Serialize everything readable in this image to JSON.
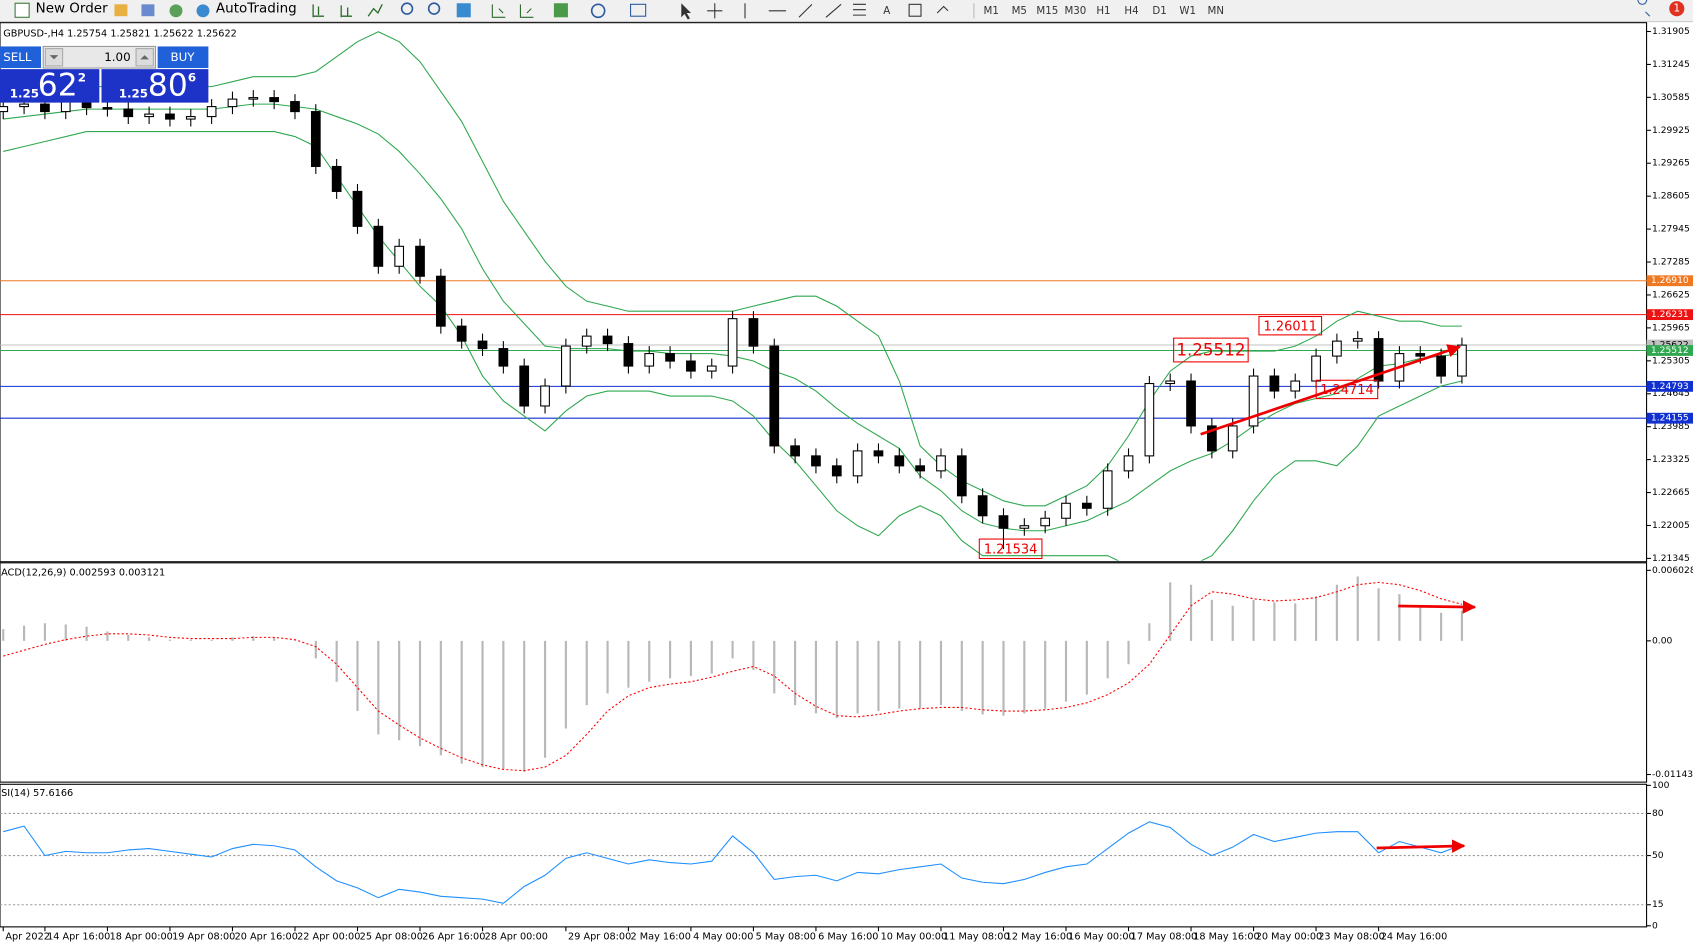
{
  "toolbar": {
    "new_order": "New Order",
    "autotrading": "AutoTrading",
    "timeframes": [
      "M1",
      "M5",
      "M15",
      "M30",
      "H1",
      "H4",
      "D1",
      "W1",
      "MN"
    ],
    "alerts": "1"
  },
  "trade_panel": {
    "sell": "SELL",
    "lots": "1.00",
    "buy": "BUY",
    "sell_big": "1.25",
    "sell_digits": "62",
    "sell_pip": "2",
    "buy_big": "1.25",
    "buy_digits": "80",
    "buy_pip": "6"
  },
  "chart_data": [
    {
      "type": "candlestick",
      "title": "GBPUSD-,H4 1.25754 1.25821 1.25622 1.25622",
      "categories": [
        "Apr 2022",
        null,
        "14 Apr 16:00",
        null,
        null,
        "18 Apr 00:00",
        null,
        null,
        "19 Apr 08:00",
        null,
        null,
        "20 Apr 16:00",
        null,
        null,
        "22 Apr 00:00",
        null,
        null,
        "25 Apr 08:00",
        null,
        null,
        "26 Apr 16:00",
        null,
        null,
        "28 Apr 00:00",
        null,
        null,
        null,
        "29 Apr 08:00",
        null,
        null,
        "2 May 16:00",
        null,
        null,
        "4 May 00:00",
        null,
        null,
        "5 May 08:00",
        null,
        null,
        "6 May 16:00",
        null,
        null,
        "10 May 00:00",
        null,
        null,
        "11 May 08:00",
        null,
        null,
        "12 May 16:00",
        null,
        null,
        "16 May 00:00",
        null,
        null,
        "17 May 08:00",
        null,
        null,
        "18 May 16:00",
        null,
        null,
        "20 May 00:00",
        null,
        null,
        "23 May 08:00",
        null,
        null,
        "24 May 16:00",
        null,
        null,
        null,
        null
      ],
      "open": [
        1.303,
        1.304,
        1.3045,
        1.303,
        1.305,
        1.3038,
        1.3035,
        1.302,
        1.3025,
        1.3015,
        1.302,
        1.304,
        1.3055,
        1.3058,
        1.305,
        1.303,
        1.292,
        1.287,
        1.28,
        1.272,
        1.276,
        1.27,
        1.26,
        1.257,
        1.2555,
        1.252,
        1.244,
        1.248,
        1.256,
        1.258,
        1.2565,
        1.252,
        1.2545,
        1.253,
        1.251,
        1.252,
        1.2615,
        1.256,
        1.236,
        1.234,
        1.232,
        1.23,
        1.235,
        1.234,
        1.232,
        1.231,
        1.234,
        1.226,
        1.222,
        1.2195,
        1.22,
        1.2215,
        1.2245,
        1.2235,
        1.231,
        1.234,
        1.2485,
        1.249,
        1.24,
        1.235,
        1.24,
        1.25,
        1.247,
        1.249,
        1.254,
        1.257,
        1.2575,
        1.249,
        1.2545,
        1.254,
        1.25
      ],
      "high": [
        1.3055,
        1.306,
        1.306,
        1.3065,
        1.3065,
        1.3053,
        1.305,
        1.304,
        1.304,
        1.3035,
        1.3055,
        1.307,
        1.3073,
        1.3073,
        1.3065,
        1.3045,
        1.2935,
        1.2885,
        1.2815,
        1.2775,
        1.2775,
        1.2715,
        1.2615,
        1.2585,
        1.257,
        1.2535,
        1.2495,
        1.2575,
        1.2595,
        1.2595,
        1.258,
        1.256,
        1.256,
        1.2545,
        1.2535,
        1.263,
        1.263,
        1.2575,
        1.2375,
        1.2355,
        1.2335,
        1.2365,
        1.2365,
        1.2355,
        1.2335,
        1.2355,
        1.2355,
        1.2275,
        1.2235,
        1.2215,
        1.223,
        1.226,
        1.226,
        1.2325,
        1.2355,
        1.25,
        1.2505,
        1.2505,
        1.2415,
        1.2415,
        1.2515,
        1.2515,
        1.2505,
        1.2555,
        1.2585,
        1.259,
        1.259,
        1.256,
        1.256,
        1.2555,
        1.2577
      ],
      "low": [
        1.3015,
        1.3025,
        1.3015,
        1.3015,
        1.3023,
        1.302,
        1.3005,
        1.3005,
        1.3,
        1.3,
        1.3005,
        1.3025,
        1.304,
        1.3035,
        1.3015,
        1.2905,
        1.2855,
        1.2785,
        1.2705,
        1.2705,
        1.2685,
        1.2585,
        1.2555,
        1.254,
        1.2505,
        1.2425,
        1.2425,
        1.2465,
        1.2545,
        1.255,
        1.2505,
        1.2505,
        1.2515,
        1.2495,
        1.2495,
        1.2505,
        1.2545,
        1.2345,
        1.2325,
        1.2305,
        1.2285,
        1.2285,
        1.2325,
        1.2305,
        1.2295,
        1.2295,
        1.2245,
        1.2205,
        1.2153,
        1.218,
        1.2185,
        1.22,
        1.222,
        1.222,
        1.2295,
        1.2325,
        1.247,
        1.2385,
        1.2335,
        1.2335,
        1.2385,
        1.2455,
        1.2455,
        1.2475,
        1.2525,
        1.2555,
        1.2475,
        1.2475,
        1.2525,
        1.2485,
        1.2485
      ],
      "close": [
        1.304,
        1.3045,
        1.303,
        1.305,
        1.3038,
        1.3035,
        1.302,
        1.3025,
        1.3015,
        1.302,
        1.304,
        1.3055,
        1.3058,
        1.305,
        1.303,
        1.292,
        1.287,
        1.28,
        1.272,
        1.276,
        1.27,
        1.26,
        1.257,
        1.2555,
        1.252,
        1.244,
        1.248,
        1.256,
        1.258,
        1.2565,
        1.252,
        1.2545,
        1.253,
        1.251,
        1.252,
        1.2615,
        1.256,
        1.236,
        1.234,
        1.232,
        1.23,
        1.235,
        1.234,
        1.232,
        1.231,
        1.234,
        1.226,
        1.222,
        1.2195,
        1.22,
        1.2215,
        1.2245,
        1.2235,
        1.231,
        1.234,
        1.2485,
        1.249,
        1.24,
        1.235,
        1.24,
        1.25,
        1.247,
        1.249,
        1.254,
        1.257,
        1.2575,
        1.249,
        1.2545,
        1.254,
        1.25,
        1.2562
      ],
      "up_color": "#ffffff",
      "down_color": "#000000",
      "bands": {
        "color": "#2fa84f",
        "upper": [
          1.308,
          1.308,
          1.308,
          1.308,
          1.308,
          1.308,
          1.308,
          1.308,
          1.308,
          1.308,
          1.308,
          1.309,
          1.31,
          1.31,
          1.31,
          1.311,
          1.314,
          1.317,
          1.319,
          1.317,
          1.313,
          1.307,
          1.301,
          1.293,
          1.285,
          1.279,
          1.273,
          1.268,
          1.265,
          1.264,
          1.263,
          1.263,
          1.263,
          1.263,
          1.263,
          1.263,
          1.264,
          1.265,
          1.266,
          1.266,
          1.264,
          1.261,
          1.258,
          1.249,
          1.236,
          1.232,
          1.229,
          1.227,
          1.225,
          1.224,
          1.224,
          1.226,
          1.228,
          1.232,
          1.238,
          1.245,
          1.251,
          1.254,
          1.255,
          1.255,
          1.255,
          1.255,
          1.256,
          1.258,
          1.261,
          1.263,
          1.262,
          1.261,
          1.261,
          1.26,
          1.26
        ],
        "middle": [
          1.3015,
          1.302,
          1.3025,
          1.303,
          1.3035,
          1.3035,
          1.3035,
          1.3035,
          1.3035,
          1.3035,
          1.3035,
          1.304,
          1.3045,
          1.3045,
          1.304,
          1.3035,
          1.302,
          1.3005,
          1.2985,
          1.295,
          1.2905,
          1.2855,
          1.2795,
          1.2715,
          1.265,
          1.2605,
          1.256,
          1.2555,
          1.2555,
          1.2555,
          1.255,
          1.255,
          1.2545,
          1.2545,
          1.2545,
          1.254,
          1.253,
          1.251,
          1.2495,
          1.247,
          1.2435,
          1.2405,
          1.238,
          1.2355,
          1.23,
          1.227,
          1.223,
          1.2205,
          1.2195,
          1.219,
          1.219,
          1.22,
          1.221,
          1.223,
          1.225,
          1.228,
          1.231,
          1.233,
          1.2345,
          1.237,
          1.24,
          1.2425,
          1.2445,
          1.2455,
          1.2465,
          1.2495,
          1.252,
          1.2525,
          1.2535,
          1.254,
          1.2545
        ],
        "lower": [
          1.295,
          1.296,
          1.297,
          1.298,
          1.299,
          1.299,
          1.299,
          1.299,
          1.299,
          1.299,
          1.299,
          1.299,
          1.299,
          1.299,
          1.298,
          1.296,
          1.29,
          1.284,
          1.278,
          1.273,
          1.268,
          1.264,
          1.258,
          1.25,
          1.245,
          1.242,
          1.239,
          1.243,
          1.246,
          1.247,
          1.247,
          1.247,
          1.246,
          1.246,
          1.246,
          1.245,
          1.242,
          1.237,
          1.233,
          1.228,
          1.223,
          1.22,
          1.218,
          1.222,
          1.224,
          1.222,
          1.217,
          1.214,
          1.214,
          1.214,
          1.214,
          1.214,
          1.214,
          1.214,
          1.212,
          1.211,
          1.211,
          1.212,
          1.214,
          1.219,
          1.225,
          1.23,
          1.233,
          1.233,
          1.232,
          1.236,
          1.242,
          1.244,
          1.246,
          1.248,
          1.249
        ]
      },
      "ylim": [
        1.213,
        1.3206
      ],
      "yticks": [
        1.31905,
        1.31245,
        1.30585,
        1.29925,
        1.29265,
        1.28605,
        1.27945,
        1.27285,
        1.26625,
        1.25965,
        1.25305,
        1.24645,
        1.23985,
        1.23325,
        1.22665,
        1.22005,
        1.21345
      ],
      "levels": [
        {
          "value": 1.2691,
          "label": "1.26910",
          "color": "#f07820",
          "text_color": "#ffffff"
        },
        {
          "value": 1.26231,
          "label": "1.26231",
          "color": "#ee1111",
          "text_color": "#ffffff"
        },
        {
          "value": 1.25622,
          "label": "1.25622",
          "color": "#c0c0c0",
          "text_color": "#000000"
        },
        {
          "value": 1.25512,
          "label": "1.25512",
          "color": "#2fa84f",
          "text_color": "#ffffff"
        },
        {
          "value": 1.24793,
          "label": "1.24793",
          "color": "#1030d0",
          "text_color": "#ffffff"
        },
        {
          "value": 1.24155,
          "label": "1.24155",
          "color": "#1030d0",
          "text_color": "#ffffff"
        }
      ],
      "annotations": [
        "1.26011",
        "1.25512",
        "1.24714",
        "1.21534"
      ]
    },
    {
      "type": "macd",
      "title": "ACD(12,26,9) 0.002593 0.003121",
      "histogram": {
        "color": "#b8b8b8",
        "values": [
          0.001,
          0.0013,
          0.0015,
          0.0014,
          0.0012,
          0.0008,
          0.0005,
          0.0003,
          0.0001,
          0.0001,
          0.0001,
          0.0003,
          0.0004,
          0.0003,
          0.0001,
          -0.0015,
          -0.0035,
          -0.006,
          -0.008,
          -0.0085,
          -0.009,
          -0.0098,
          -0.0105,
          -0.0108,
          -0.011,
          -0.0112,
          -0.01,
          -0.0075,
          -0.0055,
          -0.0045,
          -0.004,
          -0.0035,
          -0.0032,
          -0.003,
          -0.0028,
          -0.0015,
          -0.0025,
          -0.0045,
          -0.0055,
          -0.0062,
          -0.0066,
          -0.0062,
          -0.006,
          -0.0058,
          -0.0058,
          -0.0055,
          -0.006,
          -0.0063,
          -0.0064,
          -0.0062,
          -0.0058,
          -0.0052,
          -0.0046,
          -0.0032,
          -0.002,
          0.0015,
          0.005,
          0.0048,
          0.0035,
          0.003,
          0.0035,
          0.0033,
          0.0032,
          0.0038,
          0.0048,
          0.0055,
          0.0045,
          0.004,
          0.003,
          0.0024,
          0.002593
        ]
      },
      "signal": {
        "color": "#ff0000",
        "values": [
          -0.0013,
          -0.0008,
          -0.0003,
          0.0001,
          0.0004,
          0.0006,
          0.0006,
          0.0005,
          0.0003,
          0.0002,
          0.0002,
          0.0002,
          0.0003,
          0.0003,
          0.0001,
          -0.0005,
          -0.002,
          -0.004,
          -0.006,
          -0.0072,
          -0.0083,
          -0.0092,
          -0.01,
          -0.0106,
          -0.011,
          -0.0111,
          -0.0108,
          -0.0098,
          -0.008,
          -0.006,
          -0.0047,
          -0.004,
          -0.0037,
          -0.0035,
          -0.0031,
          -0.0026,
          -0.0022,
          -0.003,
          -0.0045,
          -0.0056,
          -0.0064,
          -0.0065,
          -0.0063,
          -0.006,
          -0.0058,
          -0.0057,
          -0.0057,
          -0.0059,
          -0.006,
          -0.006,
          -0.0059,
          -0.0057,
          -0.0053,
          -0.0046,
          -0.0036,
          -0.002,
          0.0005,
          0.003,
          0.0042,
          0.004,
          0.0036,
          0.0034,
          0.0035,
          0.0037,
          0.0042,
          0.0048,
          0.005,
          0.0048,
          0.0043,
          0.0036,
          0.003121
        ]
      },
      "ylim": [
        -0.01199,
        0.00658
      ],
      "yticks": [
        0.006028,
        {
          "value": 0,
          "label": "0.00"
        },
        -0.011431
      ]
    },
    {
      "type": "line",
      "title": "SI(14) 57.6166",
      "color": "#1e8fff",
      "values": [
        67,
        71,
        50,
        53,
        52,
        52,
        54,
        55,
        53,
        51,
        49,
        55,
        58,
        57,
        54,
        42,
        32,
        27,
        20,
        26,
        24,
        21,
        20,
        19,
        16,
        28,
        36,
        48,
        52,
        48,
        44,
        47,
        45,
        44,
        46,
        64,
        52,
        33,
        35,
        36,
        32,
        38,
        37,
        40,
        42,
        44,
        34,
        31,
        30,
        33,
        38,
        42,
        44,
        55,
        66,
        74,
        70,
        58,
        50,
        56,
        65,
        60,
        63,
        66,
        67,
        67,
        52,
        60,
        56,
        52,
        57.6166
      ],
      "ylim": [
        0,
        100
      ],
      "yticks": [
        100,
        80,
        50,
        15,
        0
      ],
      "levels": [
        80,
        50,
        15
      ]
    }
  ]
}
